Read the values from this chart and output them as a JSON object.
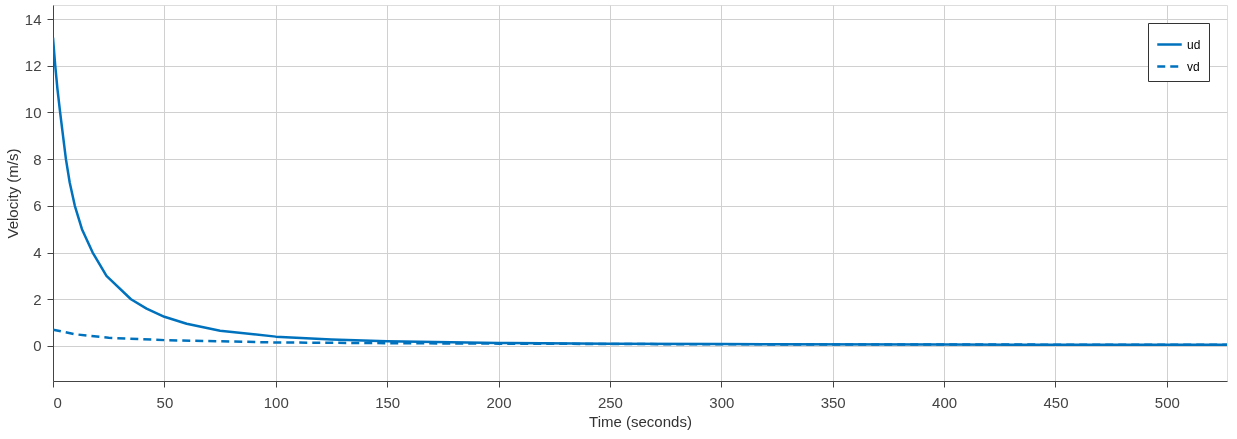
{
  "chart_data": {
    "type": "line",
    "xlabel": "Time (seconds)",
    "ylabel": "Velocity (m/s)",
    "xlim": [
      0,
      527
    ],
    "xticks": [
      0,
      50,
      100,
      150,
      200,
      250,
      300,
      350,
      400,
      450,
      500
    ],
    "ylim": [
      -1.5,
      14.6
    ],
    "yticks": [
      0,
      2,
      4,
      6,
      8,
      10,
      12,
      14
    ],
    "grid": true,
    "legend": "top right",
    "marker": "none",
    "series": [
      {
        "name": "ud",
        "color": "#0072bd",
        "line_style": "solid",
        "x": [
          0,
          1,
          2,
          3.2,
          4.5,
          5.8,
          7.5,
          9.8,
          13,
          17.8,
          24,
          35,
          42,
          50,
          60,
          75,
          100,
          125,
          150,
          200,
          250,
          300,
          400,
          527
        ],
        "values": [
          13.2,
          12,
          11,
          10,
          9,
          8,
          7,
          6,
          5,
          4,
          3,
          2,
          1.6,
          1.25,
          0.95,
          0.65,
          0.4,
          0.28,
          0.2,
          0.13,
          0.1,
          0.08,
          0.06,
          0.05
        ]
      },
      {
        "name": "vd",
        "color": "#0072bd",
        "line_style": "dashed",
        "x": [
          0,
          10,
          25,
          50,
          100,
          150,
          200,
          300,
          527
        ],
        "values": [
          0.7,
          0.5,
          0.35,
          0.25,
          0.15,
          0.12,
          0.1,
          0.07,
          0.05
        ]
      }
    ]
  }
}
